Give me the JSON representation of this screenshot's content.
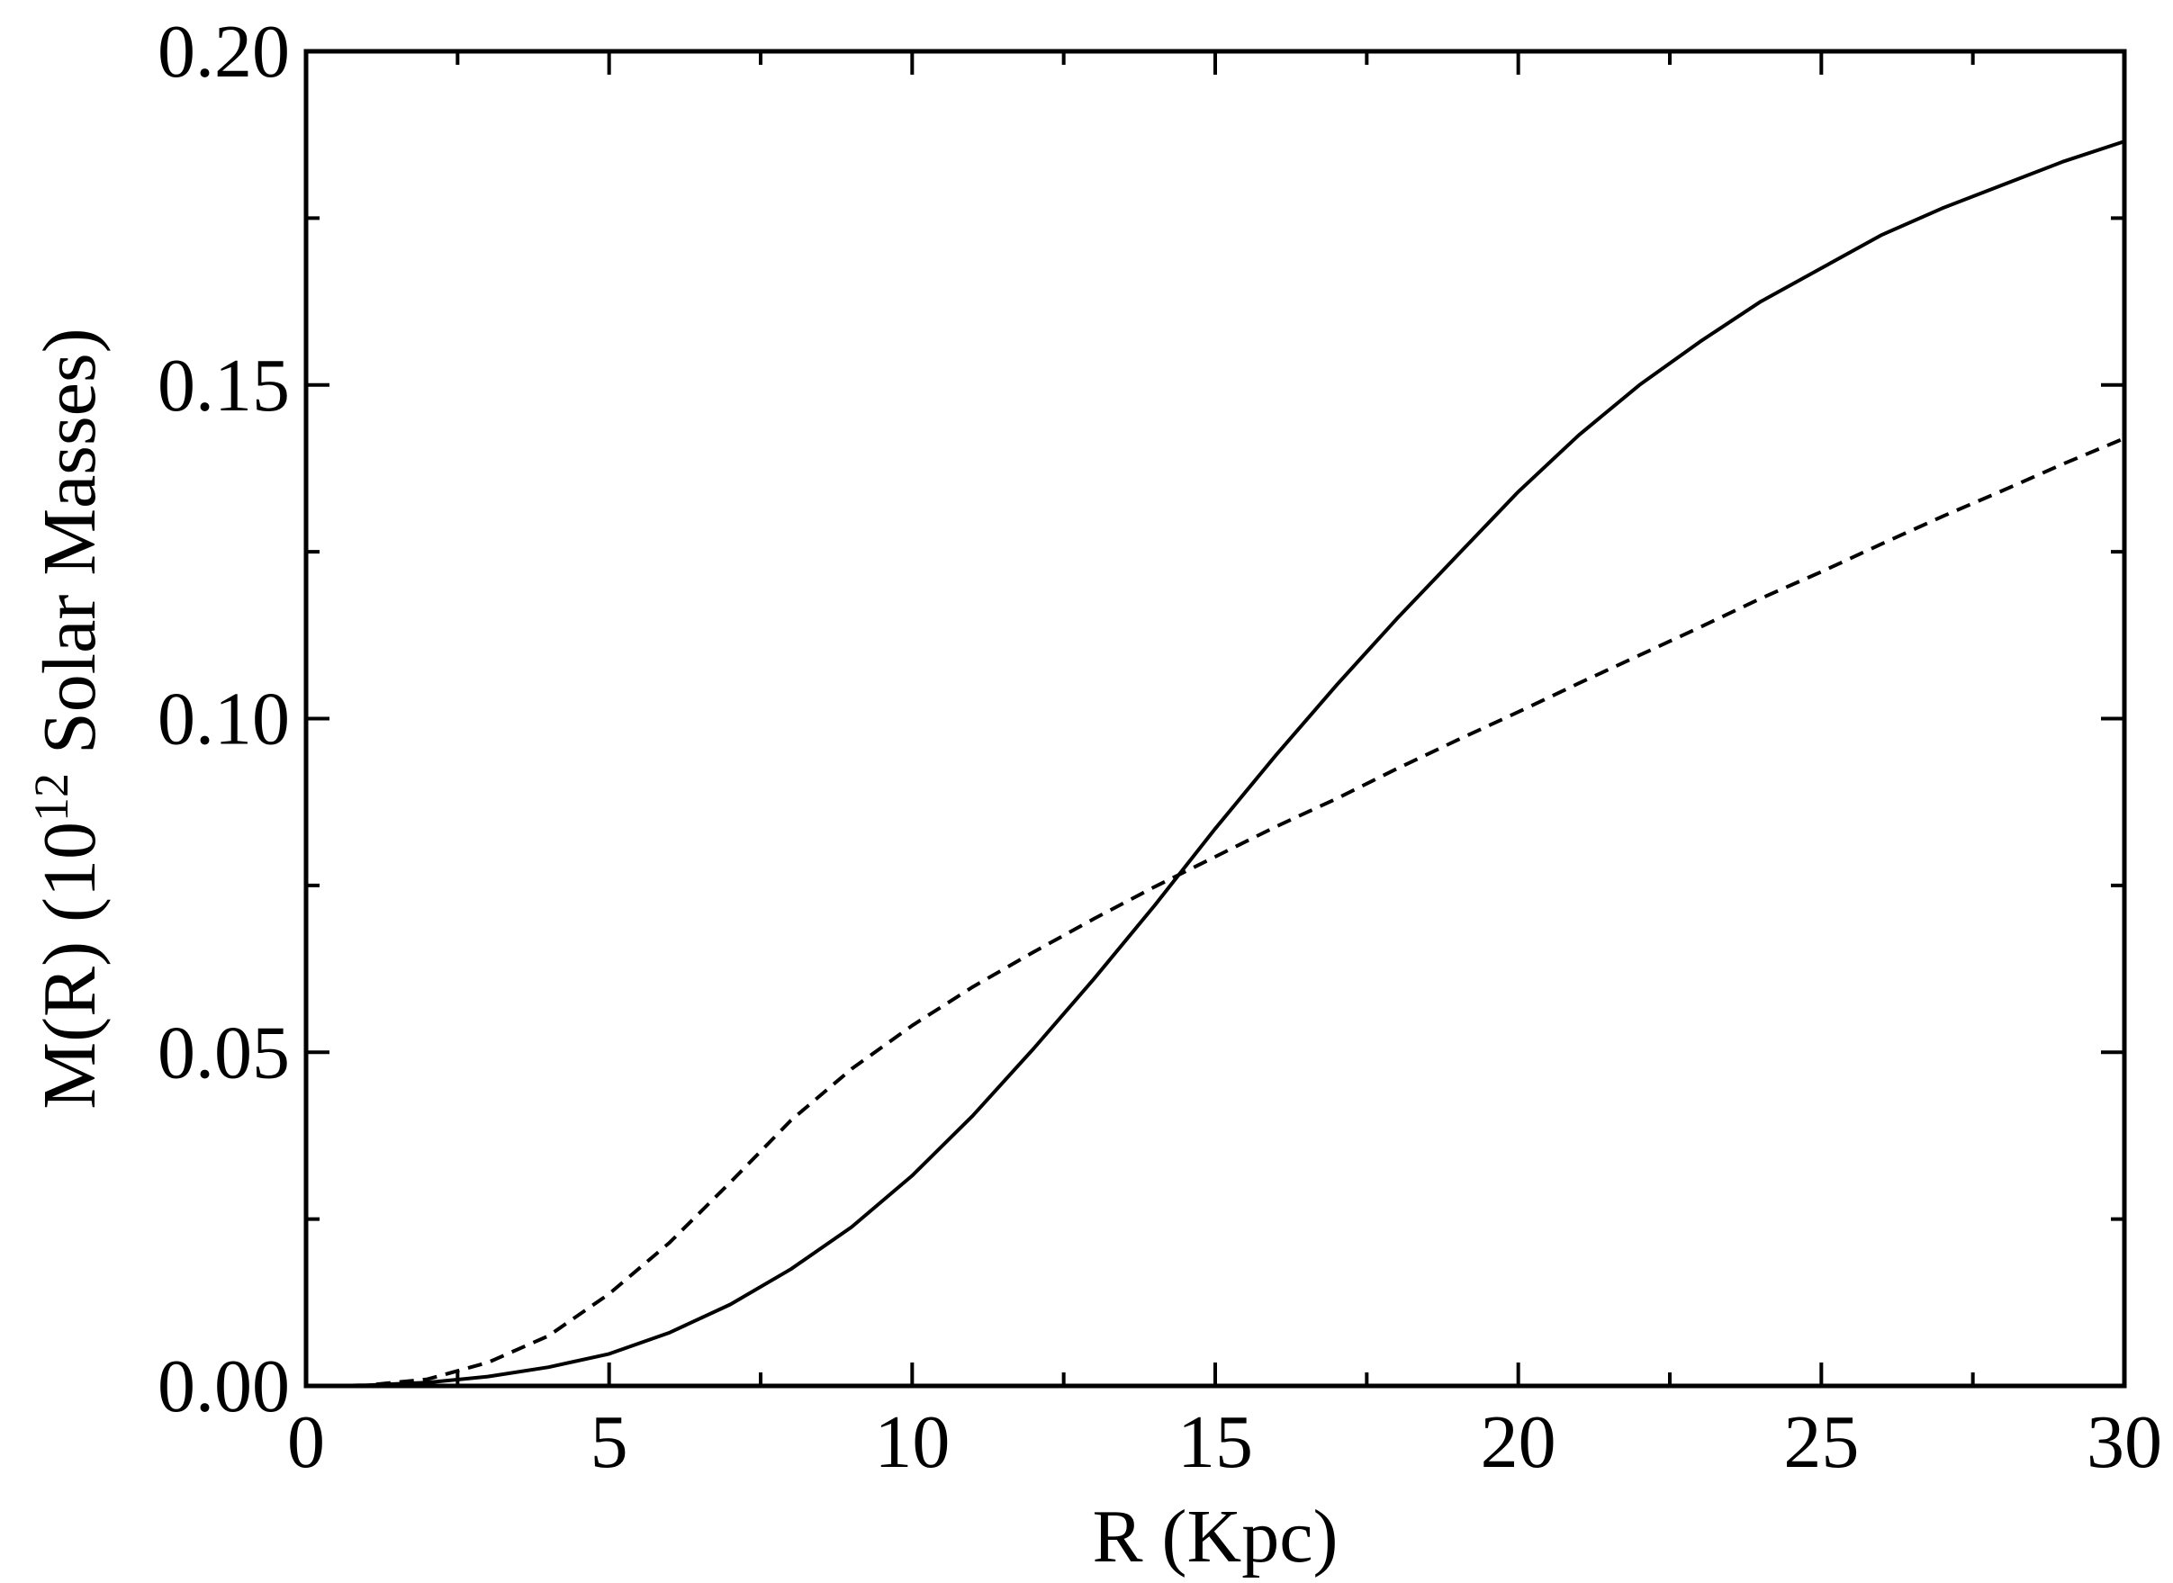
{
  "chart_data": {
    "type": "line",
    "title": "",
    "xlabel": "R (Kpc)",
    "ylabel": {
      "prefix": "M(R) (10",
      "exponent": "12",
      "suffix": " Solar Masses)"
    },
    "xlim": [
      0,
      30
    ],
    "ylim": [
      0,
      0.2
    ],
    "x_ticks": [
      0,
      5,
      10,
      15,
      20,
      25,
      30
    ],
    "x_tick_labels": [
      "0",
      "5",
      "10",
      "15",
      "20",
      "25",
      "30"
    ],
    "y_ticks": [
      0,
      0.05,
      0.1,
      0.15,
      0.2
    ],
    "y_tick_labels": [
      "0.00",
      "0.05",
      "0.10",
      "0.15",
      "0.20"
    ],
    "grid": false,
    "legend": "none",
    "series": [
      {
        "style": "solid",
        "color": "#000000",
        "x": [
          0,
          1,
          2,
          3,
          4,
          5,
          6,
          7,
          8,
          9,
          10,
          11,
          12,
          13,
          14,
          15,
          16,
          17,
          18,
          19,
          20,
          21,
          22,
          23,
          24,
          25,
          26,
          27,
          28,
          29,
          30
        ],
        "y": [
          0,
          0.0001,
          0.0005,
          0.0014,
          0.0028,
          0.0048,
          0.008,
          0.0122,
          0.0175,
          0.0238,
          0.0315,
          0.0405,
          0.0505,
          0.061,
          0.072,
          0.0835,
          0.0945,
          0.105,
          0.115,
          0.1245,
          0.134,
          0.1425,
          0.15,
          0.1565,
          0.1625,
          0.1675,
          0.1725,
          0.1765,
          0.18,
          0.1835,
          0.1865
        ]
      },
      {
        "style": "dashed",
        "color": "#000000",
        "x": [
          0,
          1,
          2,
          3,
          4,
          5,
          6,
          7,
          8,
          9,
          10,
          11,
          12,
          13,
          14,
          15,
          16,
          17,
          18,
          19,
          20,
          21,
          22,
          23,
          24,
          25,
          26,
          27,
          28,
          29,
          30
        ],
        "y": [
          0,
          0.0001,
          0.001,
          0.0035,
          0.0075,
          0.0138,
          0.0215,
          0.0305,
          0.0398,
          0.0475,
          0.054,
          0.0598,
          0.065,
          0.07,
          0.0748,
          0.0793,
          0.0838,
          0.088,
          0.0925,
          0.0968,
          0.101,
          0.1053,
          0.1095,
          0.1137,
          0.118,
          0.122,
          0.1262,
          0.1303,
          0.1342,
          0.1382,
          0.142
        ]
      }
    ]
  }
}
